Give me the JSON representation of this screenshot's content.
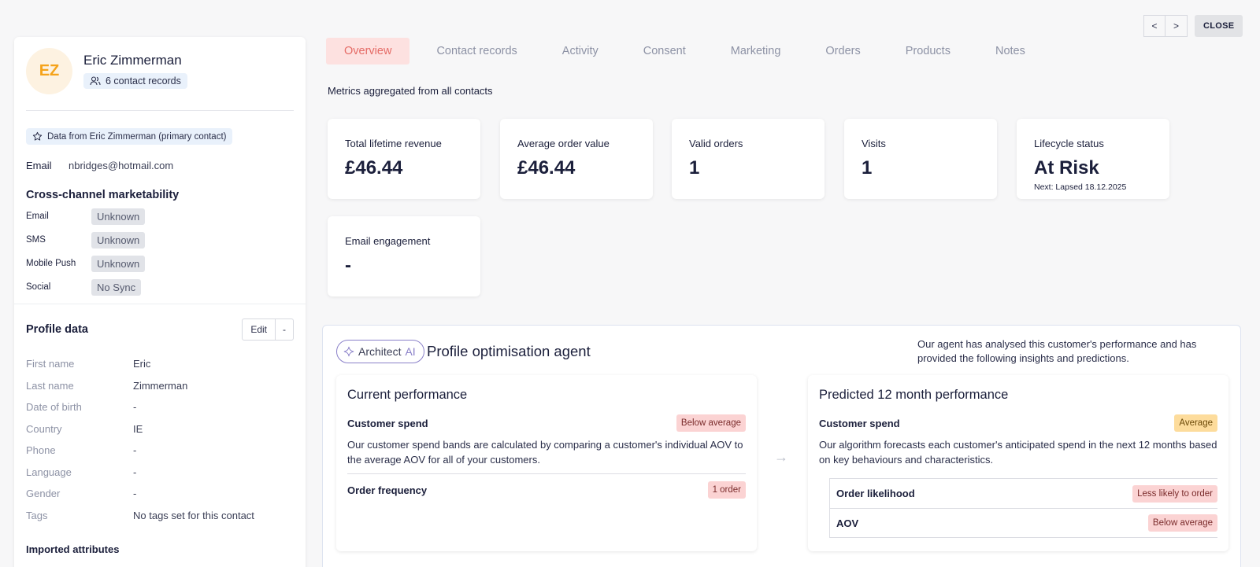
{
  "profile": {
    "initials": "EZ",
    "name": "Eric Zimmerman",
    "records_label": "6 contact records",
    "primary_label": "Data from Eric Zimmerman (primary contact)",
    "email_key": "Email",
    "email_value": "nbridges@hotmail.com"
  },
  "marketability": {
    "title": "Cross-channel marketability",
    "rows": [
      {
        "channel": "Email",
        "status": "Unknown"
      },
      {
        "channel": "SMS",
        "status": "Unknown"
      },
      {
        "channel": "Mobile Push",
        "status": "Unknown"
      },
      {
        "channel": "Social",
        "status": "No Sync"
      }
    ]
  },
  "profile_data": {
    "title": "Profile data",
    "edit_label": "Edit",
    "dropdown_label": "-",
    "rows": [
      {
        "key": "First name",
        "value": "Eric"
      },
      {
        "key": "Last name",
        "value": "Zimmerman"
      },
      {
        "key": "Date of birth",
        "value": "-"
      },
      {
        "key": "Country",
        "value": "IE"
      },
      {
        "key": "Phone",
        "value": "-"
      },
      {
        "key": "Language",
        "value": "-"
      },
      {
        "key": "Gender",
        "value": "-"
      },
      {
        "key": "Tags",
        "value": "No tags set for this contact"
      }
    ],
    "next_heading": "Imported attributes"
  },
  "nav": {
    "prev": "<",
    "next": ">",
    "close": "CLOSE"
  },
  "tabs": [
    "Overview",
    "Contact records",
    "Activity",
    "Consent",
    "Marketing",
    "Orders",
    "Products",
    "Notes"
  ],
  "aggregate_label": "Metrics aggregated from all contacts",
  "metrics": [
    {
      "label": "Total lifetime revenue",
      "value": "£46.44"
    },
    {
      "label": "Average order value",
      "value": "£46.44"
    },
    {
      "label": "Valid orders",
      "value": "1"
    },
    {
      "label": "Visits",
      "value": "1"
    },
    {
      "label": "Lifecycle status",
      "value": "At Risk",
      "sub": "Next: Lapsed 18.12.2025"
    },
    {
      "label": "Email engagement",
      "value": "-"
    }
  ],
  "ai": {
    "badge": "Architect",
    "badge_ai": "AI",
    "title": "Profile optimisation agent",
    "description": "Our agent has analysed this customer's performance and has provided the following insights and predictions.",
    "current": {
      "title": "Current performance",
      "spend_label": "Customer spend",
      "spend_tag": "Below average",
      "spend_text": "Our customer spend bands are calculated by comparing a customer's individual AOV to the average AOV for all of your customers.",
      "freq_label": "Order frequency",
      "freq_tag": "1 order"
    },
    "predicted": {
      "title": "Predicted 12 month performance",
      "spend_label": "Customer spend",
      "spend_tag": "Average",
      "spend_text": "Our algorithm forecasts each customer's anticipated spend in the next 12 months based on key behaviours and characteristics.",
      "likelihood_label": "Order likelihood",
      "likelihood_tag": "Less likely to order",
      "aov_label": "AOV",
      "aov_tag": "Below average"
    }
  }
}
